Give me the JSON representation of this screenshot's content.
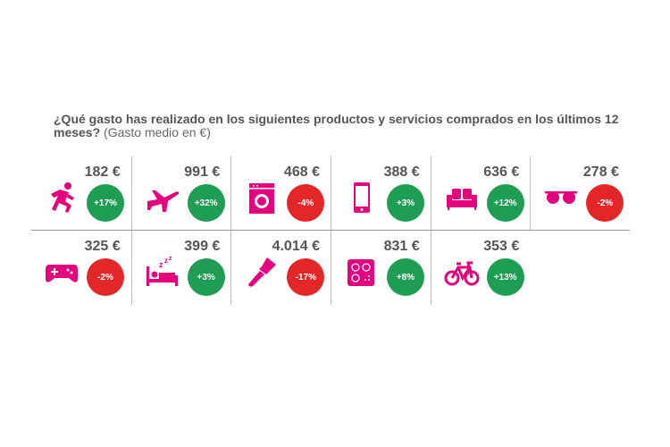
{
  "title": {
    "main": "¿Qué gasto has realizado en los siguientes productos y servicios comprados en los últimos 12 meses?",
    "sub": "(Gasto medio en €)"
  },
  "colors": {
    "icon": "#e5007e",
    "positive": "#1f9d55",
    "negative": "#e52629"
  },
  "items": [
    {
      "icon": "running-person-icon",
      "price": "182 €",
      "change": "+17%",
      "trend": "positive"
    },
    {
      "icon": "airplane-icon",
      "price": "991 €",
      "change": "+32%",
      "trend": "positive"
    },
    {
      "icon": "washing-machine-icon",
      "price": "468 €",
      "change": "-4%",
      "trend": "negative"
    },
    {
      "icon": "smartphone-icon",
      "price": "388 €",
      "change": "+3%",
      "trend": "positive"
    },
    {
      "icon": "sofa-icon",
      "price": "636 €",
      "change": "+12%",
      "trend": "positive"
    },
    {
      "icon": "sunglasses-icon",
      "price": "278 €",
      "change": "-2%",
      "trend": "negative"
    },
    {
      "icon": "gamepad-icon",
      "price": "325 €",
      "change": "-2%",
      "trend": "negative"
    },
    {
      "icon": "bed-sleep-icon",
      "price": "399 €",
      "change": "+3%",
      "trend": "positive"
    },
    {
      "icon": "paintbrush-icon",
      "price": "4.014 €",
      "change": "-17%",
      "trend": "negative"
    },
    {
      "icon": "cooktop-icon",
      "price": "831 €",
      "change": "+8%",
      "trend": "positive"
    },
    {
      "icon": "bicycle-icon",
      "price": "353 €",
      "change": "+13%",
      "trend": "positive"
    }
  ]
}
